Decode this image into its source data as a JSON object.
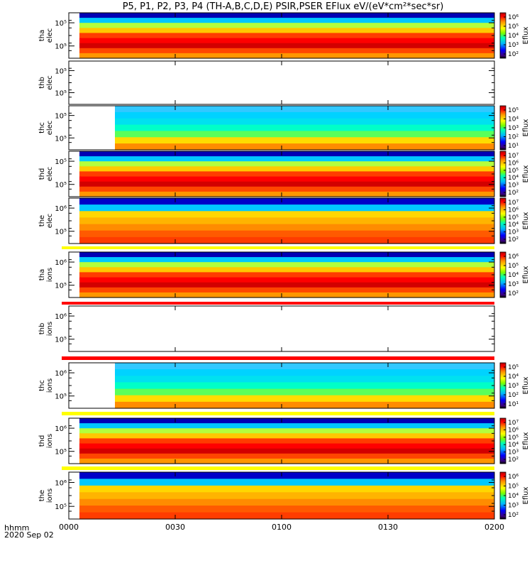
{
  "title": "P5, P1, P2, P3, P4 (TH-A,B,C,D,E) PSIR,PSER EFlux eV/(eV*cm²*sec*sr)",
  "colorbar_label": "Eflux",
  "time_axis": {
    "ticks": [
      "0000",
      "0030",
      "0100",
      "0130",
      "0200"
    ],
    "footer_label": "hhmm",
    "date_label": "2020 Sep 02"
  },
  "chart_data": {
    "type": "heatmap",
    "panels": [
      {
        "probe": "tha",
        "species": "elec",
        "label_top": "tha",
        "label_bottom": "elec",
        "ytick_labels": [
          "10⁵",
          "10⁵"
        ],
        "has_data": true,
        "data_start_hhmm": "0003",
        "cbar_ticks": [
          "10⁶",
          "10⁵",
          "10⁴",
          "10³",
          "10²"
        ],
        "cbar_range_log10": [
          2,
          6.5
        ]
      },
      {
        "probe": "thb",
        "species": "elec",
        "label_top": "thb",
        "label_bottom": "elec",
        "ytick_labels": [
          "10⁵",
          "10⁵"
        ],
        "has_data": false,
        "cbar_ticks": [],
        "cbar_range_log10": null
      },
      {
        "probe": "thc",
        "species": "elec",
        "label_top": "thc",
        "label_bottom": "elec",
        "ytick_labels": [
          "10⁵",
          "10⁵"
        ],
        "has_data": true,
        "data_start_hhmm": "0013",
        "cbar_ticks": [
          "10⁵",
          "10⁴",
          "10³",
          "10²",
          "10¹"
        ],
        "cbar_range_log10": [
          1,
          5.5
        ]
      },
      {
        "probe": "thd",
        "species": "elec",
        "label_top": "thd",
        "label_bottom": "elec",
        "ytick_labels": [
          "10⁵",
          "10⁵"
        ],
        "has_data": true,
        "data_start_hhmm": "0003",
        "cbar_ticks": [
          "10⁷",
          "10⁶",
          "10⁵",
          "10⁴",
          "10³",
          "10²"
        ],
        "cbar_range_log10": [
          2,
          7
        ]
      },
      {
        "probe": "the",
        "species": "elec",
        "label_top": "the",
        "label_bottom": "elec",
        "ytick_labels": [
          "10⁶",
          "10⁵"
        ],
        "has_data": true,
        "data_start_hhmm": "0003",
        "cbar_ticks": [
          "10⁷",
          "10⁶",
          "10⁵",
          "10⁴",
          "10³",
          "10²"
        ],
        "cbar_range_log10": [
          2,
          7.5
        ]
      },
      {
        "probe": "tha",
        "species": "ions",
        "label_top": "tha",
        "label_bottom": "ions",
        "ytick_labels": [
          "10⁶",
          "10⁵"
        ],
        "has_data": true,
        "data_start_hhmm": "0003",
        "cbar_ticks": [
          "10⁶",
          "10⁵",
          "10⁴",
          "10³",
          "10²"
        ],
        "cbar_range_log10": [
          2,
          6.5
        ]
      },
      {
        "probe": "thb",
        "species": "ions",
        "label_top": "thb",
        "label_bottom": "ions",
        "ytick_labels": [
          "10⁶",
          "10⁵"
        ],
        "has_data": false,
        "cbar_ticks": [],
        "cbar_range_log10": null
      },
      {
        "probe": "thc",
        "species": "ions",
        "label_top": "thc",
        "label_bottom": "ions",
        "ytick_labels": [
          "10⁶",
          "10⁵"
        ],
        "has_data": true,
        "data_start_hhmm": "0013",
        "cbar_ticks": [
          "10⁵",
          "10⁴",
          "10³",
          "10²",
          "10¹"
        ],
        "cbar_range_log10": [
          1,
          5.5
        ]
      },
      {
        "probe": "thd",
        "species": "ions",
        "label_top": "thd",
        "label_bottom": "ions",
        "ytick_labels": [
          "10⁶",
          "10⁵"
        ],
        "has_data": true,
        "data_start_hhmm": "0003",
        "cbar_ticks": [
          "10⁷",
          "10⁶",
          "10⁵",
          "10⁴",
          "10³",
          "10²"
        ],
        "cbar_range_log10": [
          2,
          7.5
        ]
      },
      {
        "probe": "the",
        "species": "ions",
        "label_top": "the",
        "label_bottom": "ions",
        "ytick_labels": [
          "10⁶",
          "10⁵"
        ],
        "has_data": true,
        "data_start_hhmm": "0003",
        "cbar_ticks": [
          "10⁶",
          "10⁵",
          "10⁴",
          "10³",
          "10²"
        ],
        "cbar_range_log10": [
          2,
          6.5
        ]
      }
    ],
    "separators": [
      {
        "after_panel": 4,
        "color": "#ffff00"
      },
      {
        "after_panel": 5,
        "color": "#ff0000"
      },
      {
        "after_panel": 6,
        "color": "#ff0000"
      },
      {
        "after_panel": 7,
        "color": "#ffff00"
      },
      {
        "after_panel": 8,
        "color": "#ffff00"
      }
    ]
  }
}
